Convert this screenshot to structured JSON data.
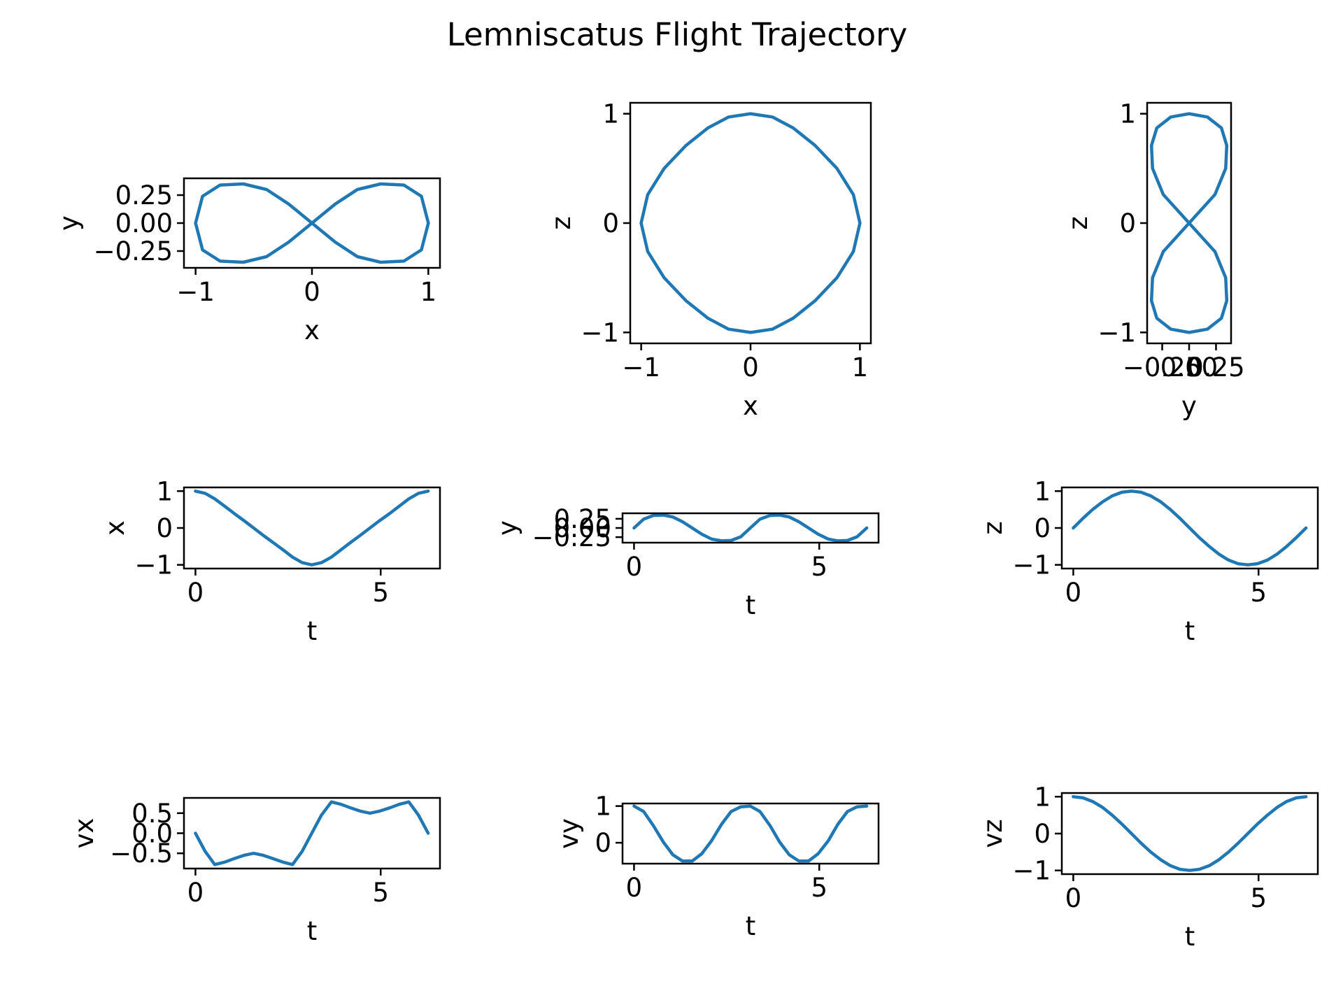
{
  "figure": {
    "title": "Lemniscatus Flight Trajectory"
  },
  "chart_data": [
    {
      "id": "xy",
      "type": "line",
      "xlabel": "x",
      "ylabel": "y",
      "xlim": [
        -1.1,
        1.1
      ],
      "ylim": [
        -0.4,
        0.4
      ],
      "xticks": [
        -1,
        0,
        1
      ],
      "xtick_labels": [
        "−1",
        "0",
        "1"
      ],
      "yticks": [
        -0.25,
        0,
        0.25
      ],
      "ytick_labels": [
        "−0.25",
        "0.00",
        "0.25"
      ],
      "series": [
        {
          "x": [
            1,
            0.94,
            0.79,
            0.59,
            0.39,
            0.2,
            0,
            -0.2,
            -0.39,
            -0.59,
            -0.79,
            -0.94,
            -1,
            -0.94,
            -0.79,
            -0.59,
            -0.39,
            -0.2,
            0,
            0.2,
            0.39,
            0.59,
            0.79,
            0.94,
            1
          ],
          "y": [
            0,
            0.24,
            0.34,
            0.35,
            0.3,
            0.17,
            0,
            -0.17,
            -0.3,
            -0.35,
            -0.34,
            -0.24,
            0,
            0.24,
            0.34,
            0.35,
            0.3,
            0.17,
            0,
            -0.17,
            -0.3,
            -0.35,
            -0.34,
            -0.24,
            0
          ]
        }
      ]
    },
    {
      "id": "xz",
      "type": "line",
      "xlabel": "x",
      "ylabel": "z",
      "xlim": [
        -1.1,
        1.1
      ],
      "ylim": [
        -1.1,
        1.1
      ],
      "xticks": [
        -1,
        0,
        1
      ],
      "xtick_labels": [
        "−1",
        "0",
        "1"
      ],
      "yticks": [
        -1,
        0,
        1
      ],
      "ytick_labels": [
        "−1",
        "0",
        "1"
      ],
      "series": [
        {
          "x": [
            1,
            0.94,
            0.79,
            0.59,
            0.39,
            0.2,
            0,
            -0.2,
            -0.39,
            -0.59,
            -0.79,
            -0.94,
            -1,
            -0.94,
            -0.79,
            -0.59,
            -0.39,
            -0.2,
            0,
            0.2,
            0.39,
            0.59,
            0.79,
            0.94,
            1
          ],
          "y": [
            0,
            0.26,
            0.5,
            0.71,
            0.87,
            0.97,
            1,
            0.97,
            0.87,
            0.71,
            0.5,
            0.26,
            0,
            -0.26,
            -0.5,
            -0.71,
            -0.87,
            -0.97,
            -1,
            -0.97,
            -0.87,
            -0.71,
            -0.5,
            -0.26,
            0
          ]
        }
      ]
    },
    {
      "id": "yz",
      "type": "line",
      "xlabel": "y",
      "ylabel": "z",
      "xlim": [
        -0.39,
        0.39
      ],
      "ylim": [
        -1.1,
        1.1
      ],
      "xticks": [
        -0.25,
        0,
        0.25
      ],
      "xtick_labels": [
        "−0.25",
        "0.00",
        "0.25"
      ],
      "yticks": [
        -1,
        0,
        1
      ],
      "ytick_labels": [
        "−1",
        "0",
        "1"
      ],
      "series": [
        {
          "x": [
            0,
            0.24,
            0.34,
            0.35,
            0.3,
            0.17,
            0,
            -0.17,
            -0.3,
            -0.35,
            -0.34,
            -0.24,
            0,
            0.24,
            0.34,
            0.35,
            0.3,
            0.17,
            0,
            -0.17,
            -0.3,
            -0.35,
            -0.34,
            -0.24,
            0
          ],
          "y": [
            0,
            0.26,
            0.5,
            0.71,
            0.87,
            0.97,
            1,
            0.97,
            0.87,
            0.71,
            0.5,
            0.26,
            0,
            -0.26,
            -0.5,
            -0.71,
            -0.87,
            -0.97,
            -1,
            -0.97,
            -0.87,
            -0.71,
            -0.5,
            -0.26,
            0
          ]
        }
      ]
    },
    {
      "id": "tx",
      "type": "line",
      "xlabel": "t",
      "ylabel": "x",
      "xlim": [
        -0.31,
        6.6
      ],
      "ylim": [
        -1.1,
        1.1
      ],
      "xticks": [
        0,
        5
      ],
      "xtick_labels": [
        "0",
        "5"
      ],
      "yticks": [
        -1,
        0,
        1
      ],
      "ytick_labels": [
        "−1",
        "0",
        "1"
      ],
      "series": [
        {
          "x": [
            0,
            0.26,
            0.52,
            0.79,
            1.05,
            1.31,
            1.57,
            1.83,
            2.09,
            2.36,
            2.62,
            2.88,
            3.14,
            3.4,
            3.67,
            3.93,
            4.19,
            4.45,
            4.71,
            4.97,
            5.24,
            5.5,
            5.76,
            6.02,
            6.28
          ],
          "y": [
            1,
            0.94,
            0.79,
            0.59,
            0.39,
            0.2,
            0,
            -0.2,
            -0.39,
            -0.59,
            -0.79,
            -0.94,
            -1,
            -0.94,
            -0.79,
            -0.59,
            -0.39,
            -0.2,
            0,
            0.2,
            0.39,
            0.59,
            0.79,
            0.94,
            1
          ]
        }
      ]
    },
    {
      "id": "ty",
      "type": "line",
      "xlabel": "t",
      "ylabel": "y",
      "xlim": [
        -0.31,
        6.6
      ],
      "ylim": [
        -0.4,
        0.4
      ],
      "xticks": [
        0,
        5
      ],
      "xtick_labels": [
        "0",
        "5"
      ],
      "yticks": [
        -0.25,
        0,
        0.25
      ],
      "ytick_labels": [
        "−0.25",
        "0.00",
        "0.25"
      ],
      "series": [
        {
          "x": [
            0,
            0.26,
            0.52,
            0.79,
            1.05,
            1.31,
            1.57,
            1.83,
            2.09,
            2.36,
            2.62,
            2.88,
            3.14,
            3.4,
            3.67,
            3.93,
            4.19,
            4.45,
            4.71,
            4.97,
            5.24,
            5.5,
            5.76,
            6.02,
            6.28
          ],
          "y": [
            0,
            0.24,
            0.34,
            0.35,
            0.3,
            0.17,
            0,
            -0.17,
            -0.3,
            -0.35,
            -0.34,
            -0.24,
            0,
            0.24,
            0.34,
            0.35,
            0.3,
            0.17,
            0,
            -0.17,
            -0.3,
            -0.35,
            -0.34,
            -0.24,
            0
          ]
        }
      ]
    },
    {
      "id": "tz",
      "type": "line",
      "xlabel": "t",
      "ylabel": "z",
      "xlim": [
        -0.31,
        6.6
      ],
      "ylim": [
        -1.1,
        1.1
      ],
      "xticks": [
        0,
        5
      ],
      "xtick_labels": [
        "0",
        "5"
      ],
      "yticks": [
        -1,
        0,
        1
      ],
      "ytick_labels": [
        "−1",
        "0",
        "1"
      ],
      "series": [
        {
          "x": [
            0,
            0.26,
            0.52,
            0.79,
            1.05,
            1.31,
            1.57,
            1.83,
            2.09,
            2.36,
            2.62,
            2.88,
            3.14,
            3.4,
            3.67,
            3.93,
            4.19,
            4.45,
            4.71,
            4.97,
            5.24,
            5.5,
            5.76,
            6.02,
            6.28
          ],
          "y": [
            0,
            0.26,
            0.5,
            0.71,
            0.87,
            0.97,
            1,
            0.97,
            0.87,
            0.71,
            0.5,
            0.26,
            0,
            -0.26,
            -0.5,
            -0.71,
            -0.87,
            -0.97,
            -1,
            -0.97,
            -0.87,
            -0.71,
            -0.5,
            -0.26,
            0
          ]
        }
      ]
    },
    {
      "id": "tvx",
      "type": "line",
      "xlabel": "t",
      "ylabel": "vx",
      "xlim": [
        -0.31,
        6.6
      ],
      "ylim": [
        -0.88,
        0.88
      ],
      "xticks": [
        0,
        5
      ],
      "xtick_labels": [
        "0",
        "5"
      ],
      "yticks": [
        -0.5,
        0,
        0.5
      ],
      "ytick_labels": [
        "−0.5",
        "0.0",
        "0.5"
      ],
      "series": [
        {
          "x": [
            0,
            0.26,
            0.52,
            0.79,
            1.05,
            1.31,
            1.57,
            1.83,
            2.09,
            2.36,
            2.62,
            2.88,
            3.14,
            3.4,
            3.67,
            3.93,
            4.19,
            4.45,
            4.71,
            4.97,
            5.24,
            5.5,
            5.76,
            6.02,
            6.28
          ],
          "y": [
            0,
            -0.45,
            -0.78,
            -0.72,
            -0.63,
            -0.55,
            -0.5,
            -0.55,
            -0.63,
            -0.72,
            -0.78,
            -0.45,
            0,
            0.45,
            0.78,
            0.72,
            0.63,
            0.55,
            0.5,
            0.55,
            0.63,
            0.72,
            0.78,
            0.45,
            0
          ]
        }
      ]
    },
    {
      "id": "tvy",
      "type": "line",
      "xlabel": "t",
      "ylabel": "vy",
      "xlim": [
        -0.31,
        6.6
      ],
      "ylim": [
        -0.57,
        1.07
      ],
      "xticks": [
        0,
        5
      ],
      "xtick_labels": [
        "0",
        "5"
      ],
      "yticks": [
        0,
        1
      ],
      "ytick_labels": [
        "0",
        "1"
      ],
      "series": [
        {
          "x": [
            0,
            0.26,
            0.52,
            0.79,
            1.05,
            1.31,
            1.57,
            1.83,
            2.09,
            2.36,
            2.62,
            2.88,
            3.14,
            3.4,
            3.67,
            3.93,
            4.19,
            4.45,
            4.71,
            4.97,
            5.24,
            5.5,
            5.76,
            6.02,
            6.28
          ],
          "y": [
            1,
            0.85,
            0.47,
            0.02,
            -0.33,
            -0.5,
            -0.5,
            -0.3,
            0.05,
            0.5,
            0.85,
            0.98,
            1,
            0.85,
            0.47,
            0.02,
            -0.33,
            -0.5,
            -0.5,
            -0.3,
            0.05,
            0.5,
            0.85,
            0.98,
            1
          ]
        }
      ]
    },
    {
      "id": "tvz",
      "type": "line",
      "xlabel": "t",
      "ylabel": "vz",
      "xlim": [
        -0.31,
        6.6
      ],
      "ylim": [
        -1.1,
        1.1
      ],
      "xticks": [
        0,
        5
      ],
      "xtick_labels": [
        "0",
        "5"
      ],
      "yticks": [
        -1,
        0,
        1
      ],
      "ytick_labels": [
        "−1",
        "0",
        "1"
      ],
      "series": [
        {
          "x": [
            0,
            0.26,
            0.52,
            0.79,
            1.05,
            1.31,
            1.57,
            1.83,
            2.09,
            2.36,
            2.62,
            2.88,
            3.14,
            3.4,
            3.67,
            3.93,
            4.19,
            4.45,
            4.71,
            4.97,
            5.24,
            5.5,
            5.76,
            6.02,
            6.28
          ],
          "y": [
            1,
            0.97,
            0.87,
            0.71,
            0.5,
            0.26,
            0,
            -0.26,
            -0.5,
            -0.71,
            -0.87,
            -0.97,
            -1,
            -0.97,
            -0.87,
            -0.71,
            -0.5,
            -0.26,
            0,
            0.26,
            0.5,
            0.71,
            0.87,
            0.97,
            1
          ]
        }
      ]
    }
  ],
  "style": {
    "line_color": "#1f77b4",
    "frame_color": "#000000",
    "background": "#ffffff"
  }
}
